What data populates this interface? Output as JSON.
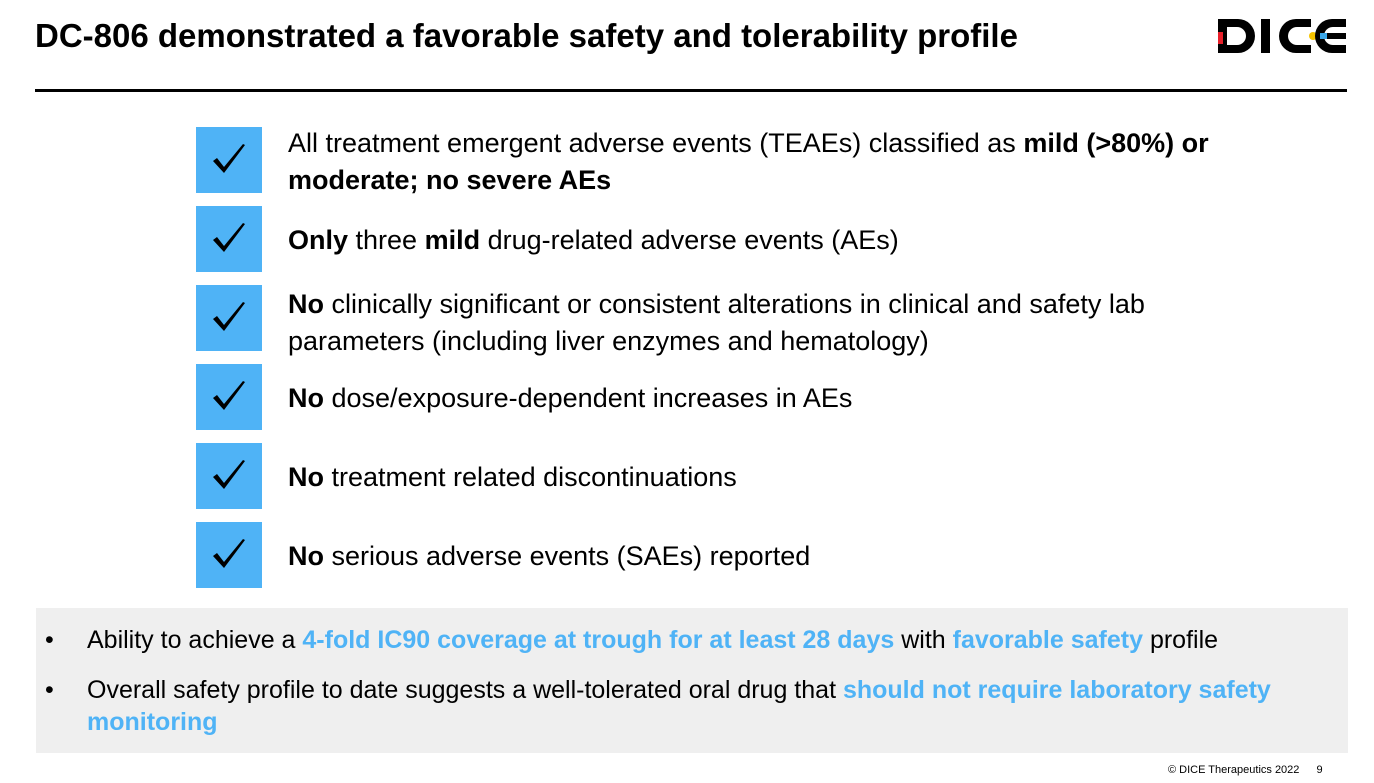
{
  "title": "DC-806 demonstrated a favorable safety and tolerability profile",
  "logo": {
    "text": "DICE",
    "colors": {
      "main": "#000000",
      "red": "#e8202a",
      "yellow": "#f6c400",
      "blue": "#3aa6e8"
    }
  },
  "checklist": [
    {
      "segments": [
        {
          "text": "All treatment emergent adverse events (TEAEs) classified as ",
          "bold": false
        },
        {
          "text": "mild",
          "bold": true
        },
        {
          "text": " (>80%) or moderate; no severe AEs",
          "bold": true
        }
      ]
    },
    {
      "segments": [
        {
          "text": "Only",
          "bold": true
        },
        {
          "text": " three ",
          "bold": false
        },
        {
          "text": "mild",
          "bold": true
        },
        {
          "text": " drug-related adverse events (AEs)",
          "bold": false
        }
      ]
    },
    {
      "segments": [
        {
          "text": "No",
          "bold": true
        },
        {
          "text": " clinically significant or consistent alterations in clinical and safety lab parameters (including liver enzymes and hematology)",
          "bold": false
        }
      ]
    },
    {
      "segments": [
        {
          "text": "No",
          "bold": true
        },
        {
          "text": " dose/exposure-dependent increases in AEs",
          "bold": false
        }
      ]
    },
    {
      "segments": [
        {
          "text": "No",
          "bold": true
        },
        {
          "text": " treatment related discontinuations",
          "bold": false
        }
      ]
    },
    {
      "segments": [
        {
          "text": "No",
          "bold": true
        },
        {
          "text": " serious adverse events (SAEs) reported",
          "bold": false
        }
      ]
    }
  ],
  "summary": {
    "bullet_char": "•",
    "bullets": [
      {
        "segments": [
          {
            "text": "Ability to achieve a ",
            "highlight": false
          },
          {
            "text": "4-fold IC90 coverage at trough for at least 28 days",
            "highlight": true
          },
          {
            "text": " with ",
            "highlight": false
          },
          {
            "text": "favorable safety",
            "highlight": true
          },
          {
            "text": " profile",
            "highlight": false
          }
        ]
      },
      {
        "segments": [
          {
            "text": "Overall safety profile to date suggests a well-tolerated oral drug that ",
            "highlight": false
          },
          {
            "text": "should not require laboratory safety monitoring",
            "highlight": true
          }
        ]
      }
    ]
  },
  "footer": {
    "copyright": "© DICE Therapeutics 2022",
    "page": "9"
  },
  "colors": {
    "accent": "#4fb3f6",
    "check_box": "#4fb3f6",
    "summary_bg": "#efefef",
    "rule": "#000000"
  }
}
